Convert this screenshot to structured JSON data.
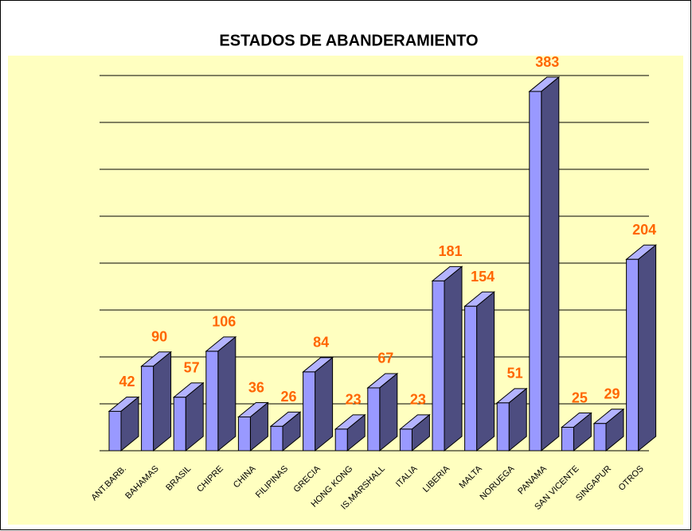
{
  "chart_data": {
    "type": "bar3d",
    "title": "ESTADOS DE ABANDERAMIENTO",
    "categories": [
      "ANT.BARB.",
      "BAHAMAS",
      "BRASIL",
      "CHIPRE",
      "CHINA",
      "FILIPINAS",
      "GRECIA",
      "HONG KONG",
      "IS.MARSHALL",
      "ITALIA",
      "LIBERIA",
      "MALTA",
      "NORUEGA",
      "PANAMA",
      "SAN VICENTE",
      "SINGAPUR",
      "OTROS"
    ],
    "values": [
      42,
      90,
      57,
      106,
      36,
      26,
      84,
      23,
      67,
      23,
      181,
      154,
      51,
      383,
      25,
      29,
      204
    ],
    "color": "#9999ff",
    "ylim": [
      0,
      400
    ],
    "yticks": [
      0,
      50,
      100,
      150,
      200,
      250,
      300,
      350,
      400
    ],
    "grid": true
  }
}
